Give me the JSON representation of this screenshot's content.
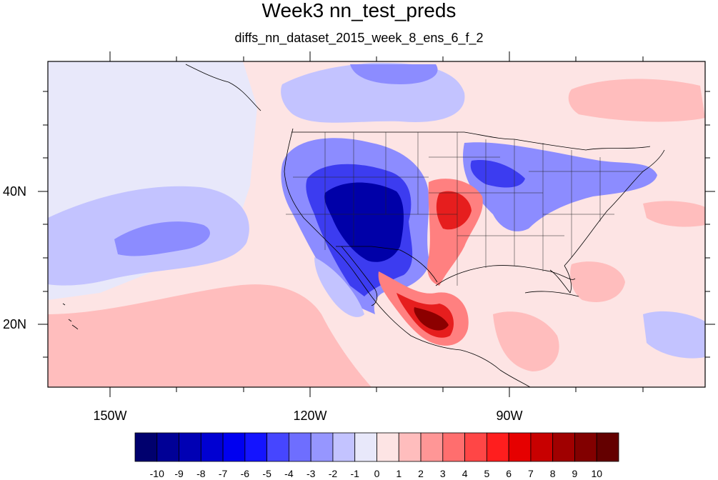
{
  "title": "Week3 nn_test_preds",
  "subtitle": "diffs_nn_dataset_2015_week_8_ens_6_f_2",
  "x_tick_labels": [
    "150W",
    "120W",
    "90W"
  ],
  "y_tick_labels": [
    "40N",
    "20N"
  ],
  "colorbar": {
    "labels": [
      "-10",
      "-9",
      "-8",
      "-7",
      "-6",
      "-5",
      "-4",
      "-3",
      "-2",
      "-1",
      "0",
      "1",
      "2",
      "3",
      "4",
      "5",
      "6",
      "7",
      "8",
      "9",
      "10"
    ],
    "colors": [
      "#00006e",
      "#000096",
      "#0000b4",
      "#0000d2",
      "#0000f0",
      "#1414ff",
      "#4646ff",
      "#6e6eff",
      "#9696ff",
      "#c3c3ff",
      "#e8e8fa",
      "#fde4e4",
      "#ffbdbd",
      "#ff9696",
      "#ff6e6e",
      "#ff4646",
      "#ff1e1e",
      "#e60000",
      "#c80000",
      "#a00000",
      "#820000",
      "#640000"
    ]
  },
  "palette": {
    "neutral_neg": "#e8e8fa",
    "neutral_pos": "#fde4e4",
    "blue_light": "#c3c3ff",
    "blue_mid": "#8c8cff",
    "blue_strong": "#3c3cf0",
    "blue_deep": "#0000a8",
    "red_light": "#ffbdbd",
    "red_mid": "#ff8080",
    "red_strong": "#e61e1e",
    "red_deep": "#8c0000"
  }
}
